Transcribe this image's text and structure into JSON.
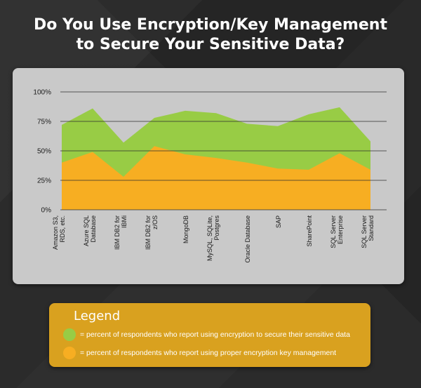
{
  "title": {
    "line1": "Do You Use Encryption/Key Management",
    "line2": "to Secure Your Sensitive Data?"
  },
  "chart_data": {
    "type": "area",
    "categories": [
      [
        "Amazon S3,",
        "RDS, etc."
      ],
      [
        "Azure SQL",
        "Database"
      ],
      [
        "IBM DB2 for",
        "IBMi"
      ],
      [
        "IBM DB2 for",
        "z/OS"
      ],
      [
        "MongoDB"
      ],
      [
        "MySQL, SQLite,",
        "Postgres"
      ],
      [
        "Oracle Database"
      ],
      [
        "SAP"
      ],
      [
        "SharePoint"
      ],
      [
        "SQL Server",
        "Enterprise"
      ],
      [
        "SQL Server",
        "Standard"
      ]
    ],
    "series": [
      {
        "key": "encryption",
        "color": "#98cc45",
        "values": [
          72,
          86,
          57,
          78,
          84,
          82,
          73,
          71,
          81,
          87,
          58
        ]
      },
      {
        "key": "key_management",
        "color": "#f7ae22",
        "values": [
          40,
          49,
          28,
          54,
          47,
          44,
          40,
          35,
          34,
          48,
          34
        ]
      }
    ],
    "yticks": [
      "0%",
      "25%",
      "50%",
      "75%",
      "100%"
    ],
    "ylim": [
      0,
      100
    ],
    "grid": true
  },
  "legend": {
    "title": "Legend",
    "items": [
      {
        "color": "#98cc45",
        "label": "= percent of respondents who report using encryption to secure their sensitive data"
      },
      {
        "color": "#f7ae22",
        "label": "= percent of respondents who report using proper encryption key management"
      }
    ]
  }
}
